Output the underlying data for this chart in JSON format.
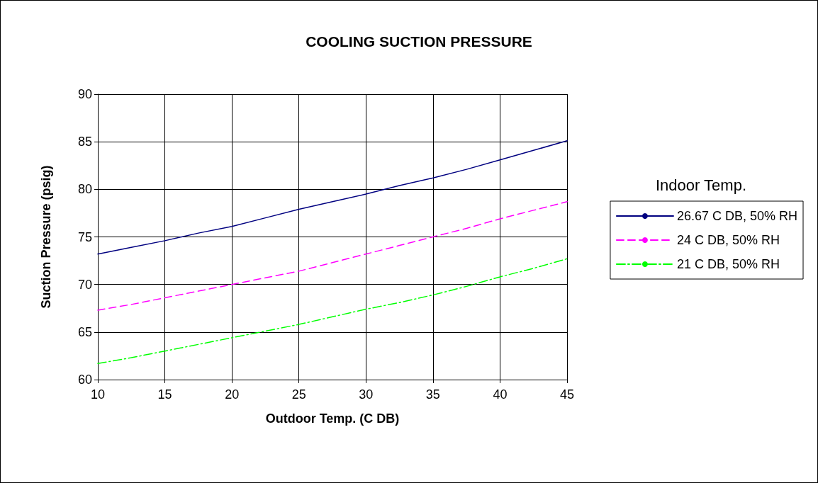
{
  "chart_data": {
    "type": "line",
    "title": "COOLING SUCTION PRESSURE",
    "xlabel": "Outdoor Temp. (C DB)",
    "ylabel": "Suction Pressure (psig)",
    "legend_title": "Indoor Temp.",
    "x": [
      10,
      12.5,
      15,
      17.5,
      20,
      22.5,
      25,
      27.5,
      30,
      32.5,
      35,
      37.5,
      40,
      42.5,
      45
    ],
    "series": [
      {
        "name": "26.67 C DB, 50% RH",
        "color": "#000080",
        "line_style": "solid",
        "values": [
          73.2,
          73.9,
          74.6,
          75.4,
          76.1,
          77.0,
          77.9,
          78.7,
          79.5,
          80.4,
          81.2,
          82.1,
          83.1,
          84.1,
          85.1
        ]
      },
      {
        "name": "24 C DB, 50% RH",
        "color": "#ff00ff",
        "line_style": "dashed",
        "values": [
          67.3,
          67.9,
          68.6,
          69.3,
          70.0,
          70.7,
          71.4,
          72.3,
          73.2,
          74.1,
          75.0,
          75.9,
          76.9,
          77.8,
          78.7
        ]
      },
      {
        "name": "21 C DB, 50% RH",
        "color": "#00ff00",
        "line_style": "dashdot",
        "values": [
          61.7,
          62.3,
          63.0,
          63.7,
          64.4,
          65.1,
          65.8,
          66.6,
          67.4,
          68.1,
          68.9,
          69.8,
          70.8,
          71.7,
          72.7
        ]
      }
    ],
    "xlim": [
      10,
      45
    ],
    "xticks": [
      10,
      15,
      20,
      25,
      30,
      35,
      40,
      45
    ],
    "ylim": [
      60,
      90
    ],
    "yticks": [
      60,
      65,
      70,
      75,
      80,
      85,
      90
    ],
    "grid": true,
    "legend": "right",
    "marker": "none"
  }
}
